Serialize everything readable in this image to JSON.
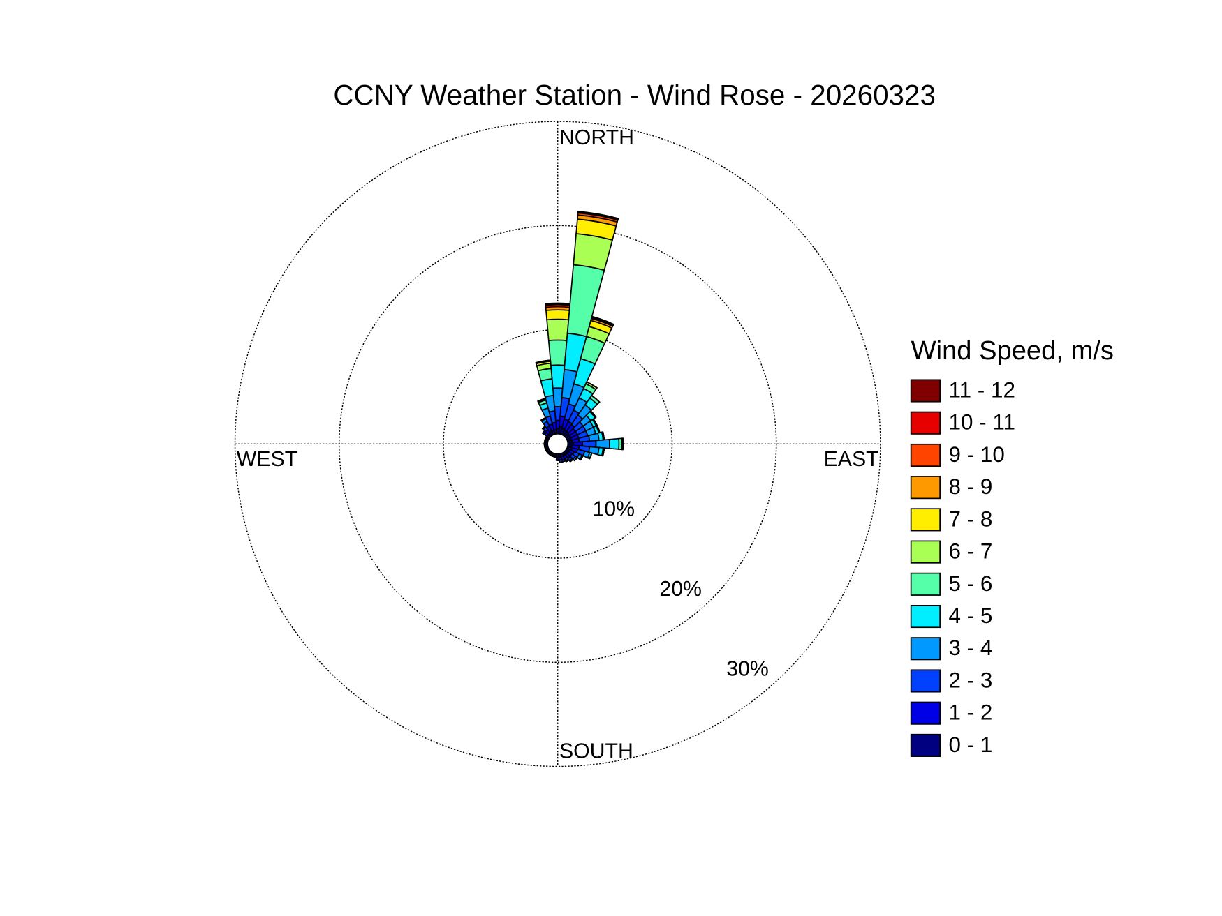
{
  "chart_data": {
    "type": "windrose",
    "title": "CCNY Weather Station - Wind Rose - 20260323",
    "legend_title": "Wind Speed, m/s",
    "direction_labels": {
      "north": "NORTH",
      "east": "EAST",
      "south": "SOUTH",
      "west": "WEST"
    },
    "rlim": [
      0,
      30
    ],
    "rticks": [
      {
        "value": 10,
        "label": "10%"
      },
      {
        "value": 20,
        "label": "20%"
      },
      {
        "value": 30,
        "label": "30%"
      }
    ],
    "grid": true,
    "series": [
      {
        "name": "0 - 1",
        "color": "#000080",
        "values": [
          0.5,
          0.7,
          0.6,
          0.5,
          0.5,
          0.4,
          0.4,
          0.4,
          0.4,
          0.5,
          0.4,
          0.4,
          0.3,
          0.3,
          0.3,
          0.3,
          0.3,
          0.3,
          0.3,
          0.2,
          0.2,
          0.2,
          0.2,
          0.2,
          0.2,
          0.2,
          0.2,
          0.2,
          0.2,
          0.2,
          0.2,
          0.3,
          0.3,
          0.4,
          0.4,
          0.4
        ]
      },
      {
        "name": "1 - 2",
        "color": "#0000e6",
        "values": [
          0.8,
          1.0,
          0.9,
          0.9,
          0.8,
          0.7,
          0.7,
          0.7,
          0.7,
          0.9,
          0.7,
          0.6,
          0.5,
          0.4,
          0.4,
          0.3,
          0.3,
          0.3,
          0.2,
          0.1,
          0.1,
          0.1,
          0.1,
          0.1,
          0.1,
          0.1,
          0.1,
          0.1,
          0.1,
          0.1,
          0.1,
          0.3,
          0.4,
          0.5,
          0.6,
          0.7
        ]
      },
      {
        "name": "2 - 3",
        "color": "#0040ff",
        "values": [
          1.3,
          1.8,
          1.5,
          1.2,
          1.1,
          0.9,
          0.9,
          0.9,
          1.0,
          1.3,
          1.0,
          0.7,
          0.5,
          0.4,
          0.3,
          0.2,
          0.2,
          0.2,
          0.1,
          0,
          0,
          0,
          0,
          0,
          0,
          0,
          0,
          0,
          0,
          0,
          0,
          0.2,
          0.3,
          0.5,
          0.8,
          1.1
        ]
      },
      {
        "name": "3 - 4",
        "color": "#0099ff",
        "values": [
          1.8,
          2.7,
          2.0,
          1.3,
          1.2,
          0.9,
          0.8,
          0.8,
          0.9,
          1.3,
          0.9,
          0.5,
          0.3,
          0.2,
          0.1,
          0.1,
          0,
          0,
          0,
          0,
          0,
          0,
          0,
          0,
          0,
          0,
          0,
          0,
          0,
          0,
          0,
          0,
          0.1,
          0.3,
          0.8,
          1.5
        ]
      },
      {
        "name": "4 - 5",
        "color": "#00eeff",
        "values": [
          2.2,
          3.5,
          2.5,
          1.0,
          0.8,
          0.5,
          0.3,
          0.3,
          0.4,
          0.9,
          0.4,
          0.2,
          0.1,
          0,
          0,
          0,
          0,
          0,
          0,
          0,
          0,
          0,
          0,
          0,
          0,
          0,
          0,
          0,
          0,
          0,
          0,
          0,
          0,
          0.1,
          0.5,
          1.6
        ]
      },
      {
        "name": "5 - 6",
        "color": "#55ffaa",
        "values": [
          2.4,
          6.6,
          2.2,
          0.5,
          0.3,
          0.1,
          0.1,
          0.1,
          0.1,
          0.3,
          0.1,
          0,
          0,
          0,
          0,
          0,
          0,
          0,
          0,
          0,
          0,
          0,
          0,
          0,
          0,
          0,
          0,
          0,
          0,
          0,
          0,
          0,
          0,
          0,
          0.3,
          1.0
        ]
      },
      {
        "name": "6 - 7",
        "color": "#aaff55",
        "values": [
          2.0,
          3.0,
          1.0,
          0.2,
          0,
          0,
          0,
          0,
          0,
          0.1,
          0,
          0,
          0,
          0,
          0,
          0,
          0,
          0,
          0,
          0,
          0,
          0,
          0,
          0,
          0,
          0,
          0,
          0,
          0,
          0,
          0,
          0,
          0,
          0,
          0.1,
          0.5
        ]
      },
      {
        "name": "7 - 8",
        "color": "#ffee00",
        "values": [
          0.9,
          1.4,
          0.6,
          0,
          0,
          0,
          0,
          0,
          0,
          0,
          0,
          0,
          0,
          0,
          0,
          0,
          0,
          0,
          0,
          0,
          0,
          0,
          0,
          0,
          0,
          0,
          0,
          0,
          0,
          0,
          0,
          0,
          0,
          0,
          0.05,
          0.2
        ]
      },
      {
        "name": "8 - 9",
        "color": "#ff9900",
        "values": [
          0.3,
          0.4,
          0.2,
          0,
          0,
          0,
          0,
          0,
          0,
          0,
          0,
          0,
          0,
          0,
          0,
          0,
          0,
          0,
          0,
          0,
          0,
          0,
          0,
          0,
          0,
          0,
          0,
          0,
          0,
          0,
          0,
          0,
          0,
          0,
          0,
          0.05
        ]
      },
      {
        "name": "9 - 10",
        "color": "#ff4400",
        "values": [
          0.2,
          0.2,
          0.1,
          0,
          0,
          0,
          0,
          0,
          0,
          0,
          0,
          0,
          0,
          0,
          0,
          0,
          0,
          0,
          0,
          0,
          0,
          0,
          0,
          0,
          0,
          0,
          0,
          0,
          0,
          0,
          0,
          0,
          0,
          0,
          0,
          0.05
        ]
      },
      {
        "name": "10 - 11",
        "color": "#e60000",
        "values": [
          0.1,
          0.1,
          0.1,
          0,
          0,
          0,
          0,
          0,
          0,
          0,
          0,
          0,
          0,
          0,
          0,
          0,
          0,
          0,
          0,
          0,
          0,
          0,
          0,
          0,
          0,
          0,
          0,
          0,
          0,
          0,
          0,
          0,
          0,
          0,
          0,
          0
        ]
      },
      {
        "name": "11 - 12",
        "color": "#800000",
        "values": [
          0.05,
          0.05,
          0,
          0,
          0,
          0,
          0,
          0,
          0,
          0,
          0,
          0,
          0,
          0,
          0,
          0,
          0,
          0,
          0,
          0,
          0,
          0,
          0,
          0,
          0,
          0,
          0,
          0,
          0,
          0,
          0,
          0,
          0,
          0,
          0,
          0
        ]
      }
    ]
  }
}
